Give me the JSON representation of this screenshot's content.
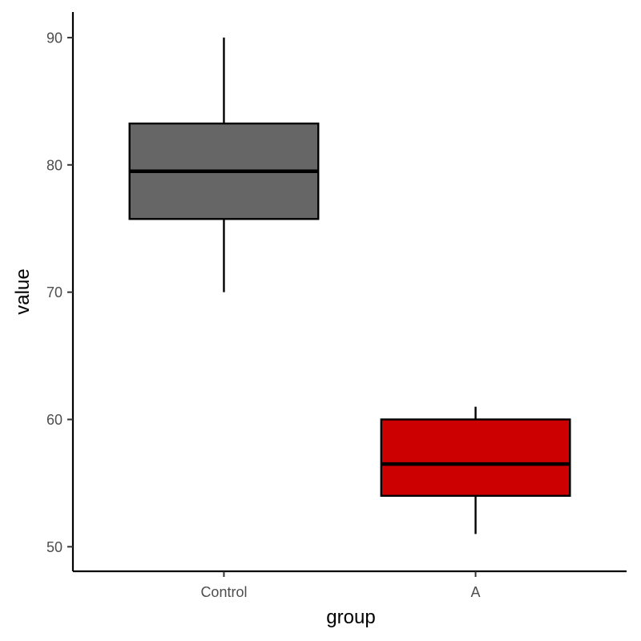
{
  "chart_data": {
    "type": "boxplot",
    "title": "",
    "xlabel": "group",
    "ylabel": "value",
    "ylim": [
      48.07,
      92.01
    ],
    "y_ticks": [
      50,
      60,
      70,
      80,
      90
    ],
    "grid": false,
    "legend": "none",
    "categories": [
      "Control",
      "A"
    ],
    "boxes": [
      {
        "category": "Control",
        "min": 70,
        "q1": 75.75,
        "median": 79.5,
        "q3": 83.25,
        "max": 90,
        "fill": "#666666"
      },
      {
        "category": "A",
        "min": 51,
        "q1": 54,
        "median": 56.5,
        "q3": 60,
        "max": 61,
        "fill": "#CC0000"
      }
    ]
  }
}
